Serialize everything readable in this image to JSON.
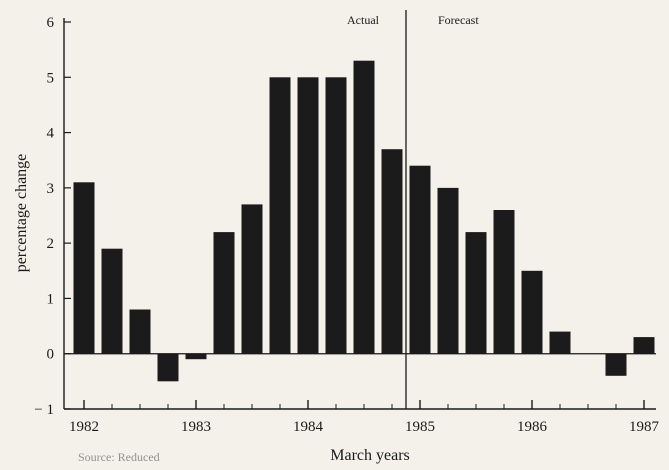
{
  "chart_data": {
    "type": "bar",
    "xlabel": "March years",
    "ylabel": "percentage change",
    "ylim": [
      -1,
      6
    ],
    "yticks": [
      -1,
      0,
      1,
      2,
      3,
      4,
      5,
      6
    ],
    "xlim": [
      1982,
      1987
    ],
    "xticks": [
      "1982",
      "1983",
      "1984",
      "1985",
      "1986",
      "1987"
    ],
    "grid": false,
    "bar_color": "#1b1b1b",
    "points": [
      {
        "x": 1982.0,
        "value": 3.1
      },
      {
        "x": 1982.25,
        "value": 1.9
      },
      {
        "x": 1982.5,
        "value": 0.8
      },
      {
        "x": 1982.75,
        "value": -0.5
      },
      {
        "x": 1983.0,
        "value": -0.1
      },
      {
        "x": 1983.25,
        "value": 2.2
      },
      {
        "x": 1983.5,
        "value": 2.7
      },
      {
        "x": 1983.75,
        "value": 5.0
      },
      {
        "x": 1984.0,
        "value": 5.0
      },
      {
        "x": 1984.25,
        "value": 5.0
      },
      {
        "x": 1984.5,
        "value": 5.3
      },
      {
        "x": 1984.75,
        "value": 3.7
      },
      {
        "x": 1985.0,
        "value": 3.4
      },
      {
        "x": 1985.25,
        "value": 3.0
      },
      {
        "x": 1985.5,
        "value": 2.2
      },
      {
        "x": 1985.75,
        "value": 2.6
      },
      {
        "x": 1986.0,
        "value": 1.5
      },
      {
        "x": 1986.25,
        "value": 0.4
      },
      {
        "x": 1986.5,
        "value": 0.0
      },
      {
        "x": 1986.75,
        "value": -0.4
      },
      {
        "x": 1987.0,
        "value": 0.3
      }
    ],
    "divider_x": 1984.875,
    "annotations": [
      {
        "text": "Actual",
        "side": "left-of-divider"
      },
      {
        "text": "Forecast",
        "side": "right-of-divider"
      }
    ]
  },
  "footer": {
    "text": "Source: Reduced"
  }
}
